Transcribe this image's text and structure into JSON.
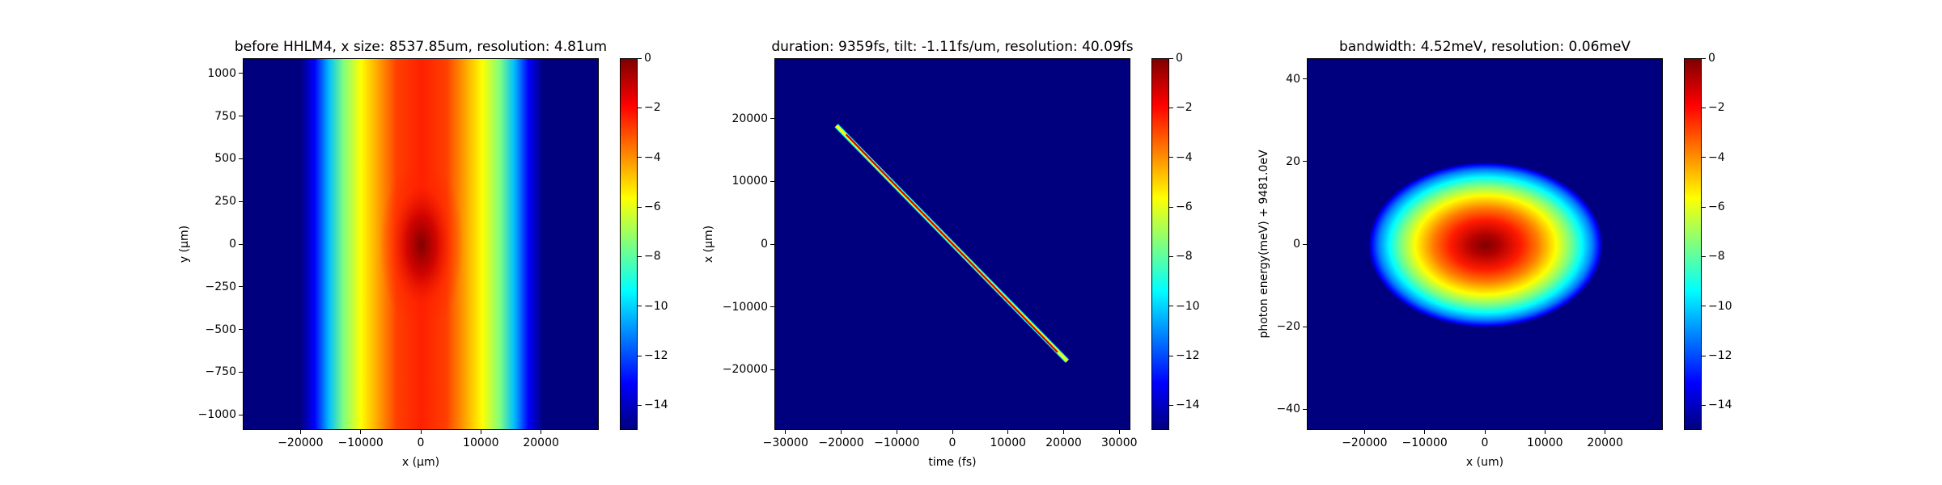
{
  "chart_data": [
    {
      "type": "heatmap",
      "title": "before HHLM4, x size: 8537.85um, resolution: 4.81um",
      "xlabel": "x (μm)",
      "ylabel": "y (μm)",
      "xlim": [
        -29600,
        29600
      ],
      "ylim": [
        -1090,
        1090
      ],
      "xticks": [
        -20000,
        -10000,
        0,
        10000,
        20000
      ],
      "xtick_labels": [
        "−20000",
        "−10000",
        "0",
        "10000",
        "20000"
      ],
      "yticks": [
        1000,
        750,
        500,
        250,
        0,
        -250,
        -500,
        -750,
        -1000
      ],
      "ytick_labels": [
        "1000",
        "750",
        "500",
        "250",
        "0",
        "−250",
        "−500",
        "−750",
        "−1000"
      ],
      "colorscale": "jet",
      "color_range": [
        -15,
        0
      ],
      "colorbar_ticks": [
        0,
        -2,
        -4,
        -6,
        -8,
        -10,
        -12,
        -14
      ],
      "colorbar_tick_labels": [
        "0",
        "−2",
        "−4",
        "−6",
        "−8",
        "−10",
        "−12",
        "−14"
      ],
      "distribution": {
        "shape": "vertical band, wider at top and bottom, narrowed near y≈±500",
        "peak_at": [
          0,
          0
        ],
        "peak_value": 0
      }
    },
    {
      "type": "heatmap",
      "title": "duration: 9359fs, tilt: -1.11fs/um, resolution: 40.09fs",
      "xlabel": "time (fs)",
      "ylabel": "x (μm)",
      "xlim": [
        -32000,
        32000
      ],
      "ylim": [
        -29600,
        29600
      ],
      "xticks": [
        -30000,
        -20000,
        -10000,
        0,
        10000,
        20000,
        30000
      ],
      "xtick_labels": [
        "−30000",
        "−20000",
        "−10000",
        "0",
        "10000",
        "20000",
        "30000"
      ],
      "yticks": [
        20000,
        10000,
        0,
        -10000,
        -20000
      ],
      "ytick_labels": [
        "20000",
        "10000",
        "0",
        "−10000",
        "−20000"
      ],
      "colorscale": "jet",
      "color_range": [
        -15,
        0
      ],
      "colorbar_ticks": [
        0,
        -2,
        -4,
        -6,
        -8,
        -10,
        -12,
        -14
      ],
      "colorbar_tick_labels": [
        "0",
        "−2",
        "−4",
        "−6",
        "−8",
        "−10",
        "−12",
        "−14"
      ],
      "distribution": {
        "shape": "narrow tilted streak",
        "from": [
          -21000,
          19000
        ],
        "to": [
          20500,
          -18500
        ],
        "peak_value": 0
      }
    },
    {
      "type": "heatmap",
      "title": "bandwidth: 4.52meV, resolution: 0.06meV",
      "xlabel": "x (um)",
      "ylabel": "photon energy(meV) + 9481.0eV",
      "xlim": [
        -29600,
        29600
      ],
      "ylim": [
        -45,
        45
      ],
      "xticks": [
        -20000,
        -10000,
        0,
        10000,
        20000
      ],
      "xtick_labels": [
        "−20000",
        "−10000",
        "0",
        "10000",
        "20000"
      ],
      "yticks": [
        40,
        20,
        0,
        -20,
        -40
      ],
      "ytick_labels": [
        "40",
        "20",
        "0",
        "−20",
        "−40"
      ],
      "colorscale": "jet",
      "color_range": [
        -15,
        0
      ],
      "colorbar_ticks": [
        0,
        -2,
        -4,
        -6,
        -8,
        -10,
        -12,
        -14
      ],
      "colorbar_tick_labels": [
        "0",
        "−2",
        "−4",
        "−6",
        "−8",
        "−10",
        "−12",
        "−14"
      ],
      "distribution": {
        "shape": "ellipse",
        "center": [
          0,
          0
        ],
        "half_width_x": 19500,
        "half_width_y": 20,
        "peak_value": 0
      }
    }
  ],
  "colors": {
    "jet": [
      "#00007f",
      "#0000ff",
      "#007fff",
      "#00ffff",
      "#7fff7f",
      "#ffff00",
      "#ff7f00",
      "#ff0000",
      "#7f0000"
    ],
    "background": "#00007f"
  }
}
